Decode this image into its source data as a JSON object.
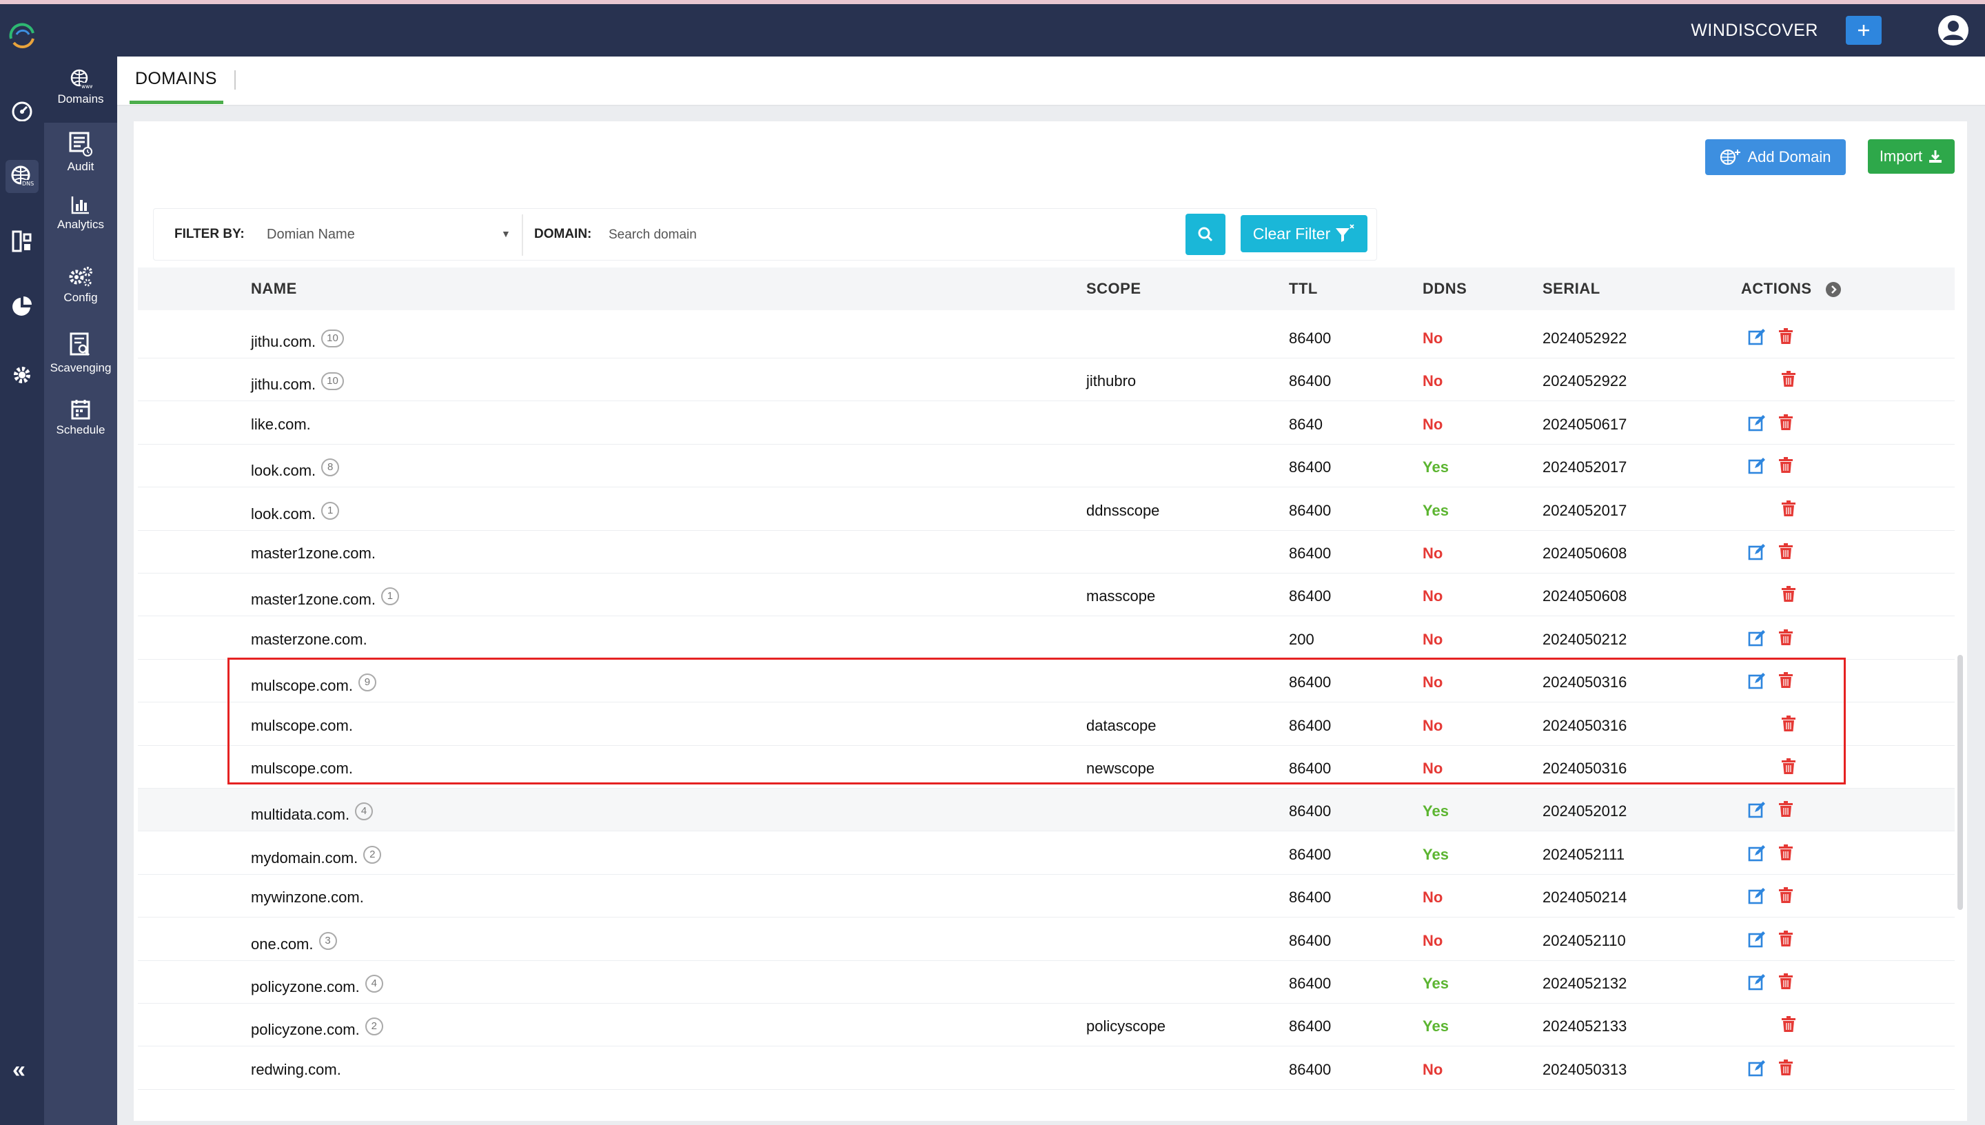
{
  "header": {
    "title": "WINDISCOVER",
    "add_icon": "plus-icon",
    "user_icon": "user-circle-icon"
  },
  "rail": {
    "icons": [
      "dashboard-icon",
      "dns-globe-icon",
      "network-icon",
      "pie-chart-icon",
      "settings-gear-icon"
    ],
    "collapse_label": "«"
  },
  "subnav": {
    "items": [
      {
        "label": "Domains",
        "icon": "globe-www-icon"
      },
      {
        "label": "Audit",
        "icon": "audit-list-icon"
      },
      {
        "label": "Analytics",
        "icon": "bar-chart-icon"
      },
      {
        "label": "Config",
        "icon": "cogs-icon"
      },
      {
        "label": "Scavenging",
        "icon": "document-search-icon"
      },
      {
        "label": "Schedule",
        "icon": "calendar-icon"
      }
    ]
  },
  "tabs": {
    "active": "DOMAINS"
  },
  "toolbar": {
    "add_domain": "Add Domain",
    "import": "Import"
  },
  "filter": {
    "filter_by_label": "FILTER BY:",
    "filter_value": "Domian Name",
    "domain_label": "DOMAIN:",
    "search_placeholder": "Search domain",
    "clear_label": "Clear Filter"
  },
  "table": {
    "columns": [
      "NAME",
      "SCOPE",
      "TTL",
      "DDNS",
      "SERIAL",
      "ACTIONS"
    ],
    "rows": [
      {
        "name": "jithu.com.",
        "badge": "10",
        "scope": "",
        "ttl": "86400",
        "ddns": "No",
        "serial": "2024052922",
        "edit": true
      },
      {
        "name": "jithu.com.",
        "badge": "10",
        "scope": "jithubro",
        "ttl": "86400",
        "ddns": "No",
        "serial": "2024052922",
        "edit": false
      },
      {
        "name": "like.com.",
        "badge": "",
        "scope": "",
        "ttl": "8640",
        "ddns": "No",
        "serial": "2024050617",
        "edit": true
      },
      {
        "name": "look.com.",
        "badge": "8",
        "scope": "",
        "ttl": "86400",
        "ddns": "Yes",
        "serial": "2024052017",
        "edit": true
      },
      {
        "name": "look.com.",
        "badge": "1",
        "scope": "ddnsscope",
        "ttl": "86400",
        "ddns": "Yes",
        "serial": "2024052017",
        "edit": false
      },
      {
        "name": "master1zone.com.",
        "badge": "",
        "scope": "",
        "ttl": "86400",
        "ddns": "No",
        "serial": "2024050608",
        "edit": true
      },
      {
        "name": "master1zone.com.",
        "badge": "1",
        "scope": "masscope",
        "ttl": "86400",
        "ddns": "No",
        "serial": "2024050608",
        "edit": false
      },
      {
        "name": "masterzone.com.",
        "badge": "",
        "scope": "",
        "ttl": "200",
        "ddns": "No",
        "serial": "2024050212",
        "edit": true
      },
      {
        "name": "mulscope.com.",
        "badge": "9",
        "scope": "",
        "ttl": "86400",
        "ddns": "No",
        "serial": "2024050316",
        "edit": true
      },
      {
        "name": "mulscope.com.",
        "badge": "",
        "scope": "datascope",
        "ttl": "86400",
        "ddns": "No",
        "serial": "2024050316",
        "edit": false
      },
      {
        "name": "mulscope.com.",
        "badge": "",
        "scope": "newscope",
        "ttl": "86400",
        "ddns": "No",
        "serial": "2024050316",
        "edit": false
      },
      {
        "name": "multidata.com.",
        "badge": "4",
        "scope": "",
        "ttl": "86400",
        "ddns": "Yes",
        "serial": "2024052012",
        "edit": true
      },
      {
        "name": "mydomain.com.",
        "badge": "2",
        "scope": "",
        "ttl": "86400",
        "ddns": "Yes",
        "serial": "2024052111",
        "edit": true
      },
      {
        "name": "mywinzone.com.",
        "badge": "",
        "scope": "",
        "ttl": "86400",
        "ddns": "No",
        "serial": "2024050214",
        "edit": true
      },
      {
        "name": "one.com.",
        "badge": "3",
        "scope": "",
        "ttl": "86400",
        "ddns": "No",
        "serial": "2024052110",
        "edit": true
      },
      {
        "name": "policyzone.com.",
        "badge": "4",
        "scope": "",
        "ttl": "86400",
        "ddns": "Yes",
        "serial": "2024052132",
        "edit": true
      },
      {
        "name": "policyzone.com.",
        "badge": "2",
        "scope": "policyscope",
        "ttl": "86400",
        "ddns": "Yes",
        "serial": "2024052133",
        "edit": false
      },
      {
        "name": "redwing.com.",
        "badge": "",
        "scope": "",
        "ttl": "86400",
        "ddns": "No",
        "serial": "2024050313",
        "edit": true
      }
    ]
  },
  "colors": {
    "topbar": "#283250",
    "ddns_no": "#e53935",
    "ddns_yes": "#5cb531",
    "highlight": "#e52222",
    "add_button": "#3d8fe0",
    "import_button": "#2ea84a",
    "filter_button": "#1ab7d8"
  }
}
